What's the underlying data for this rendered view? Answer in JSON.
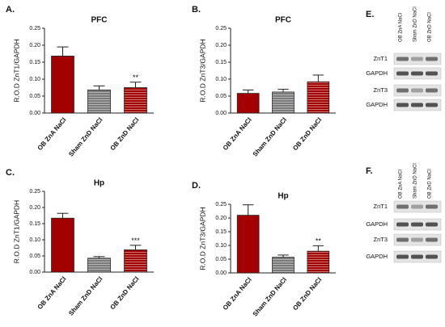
{
  "chart_data": [
    {
      "type": "bar",
      "letter": "A.",
      "title": "PFC",
      "y_label": "R.O.D ZnT1/GAPDH",
      "categories": [
        "OB ZnA NaCl",
        "Sham ZnD NaCl",
        "OB ZnD NaCl"
      ],
      "values": [
        0.168,
        0.068,
        0.075
      ],
      "errors": [
        0.027,
        0.012,
        0.016
      ],
      "colors": [
        "#a30000",
        "#7a7a7a",
        "#a30000"
      ],
      "hatch": [
        false,
        true,
        true
      ],
      "annotations": [
        null,
        null,
        "**"
      ],
      "ylim": [
        0,
        0.25
      ],
      "yticks": [
        {
          "value": 0,
          "label": "0.00"
        },
        {
          "value": 0.05,
          "label": "0.05"
        },
        {
          "value": 0.1,
          "label": "0.10"
        },
        {
          "value": 0.15,
          "label": "0.15"
        },
        {
          "value": 0.2,
          "label": "0.20"
        },
        {
          "value": 0.25,
          "label": "0.25"
        }
      ]
    },
    {
      "type": "bar",
      "letter": "B.",
      "title": "PFC",
      "y_label": "R.O.D ZnT3/GAPDH",
      "categories": [
        "OB ZnA NaCl",
        "Sham ZnD NaCl",
        "OB ZnD NaCl"
      ],
      "values": [
        0.058,
        0.062,
        0.092
      ],
      "errors": [
        0.01,
        0.008,
        0.02
      ],
      "colors": [
        "#a30000",
        "#7a7a7a",
        "#a30000"
      ],
      "hatch": [
        false,
        true,
        true
      ],
      "annotations": [
        null,
        null,
        null
      ],
      "ylim": [
        0,
        0.25
      ],
      "yticks": [
        {
          "value": 0,
          "label": "0.00"
        },
        {
          "value": 0.05,
          "label": "0.05"
        },
        {
          "value": 0.1,
          "label": "0.10"
        },
        {
          "value": 0.15,
          "label": "0.15"
        },
        {
          "value": 0.2,
          "label": "0.20"
        },
        {
          "value": 0.25,
          "label": "0.25"
        }
      ]
    },
    {
      "type": "bar",
      "letter": "C.",
      "title": "Hp",
      "y_label": "R.O.D ZnT1/GAPDH",
      "categories": [
        "OB ZnA NaCl",
        "Sham ZnD NaCl",
        "OB ZnD NaCl"
      ],
      "values": [
        0.167,
        0.043,
        0.069
      ],
      "errors": [
        0.015,
        0.005,
        0.014
      ],
      "colors": [
        "#a30000",
        "#7a7a7a",
        "#a30000"
      ],
      "hatch": [
        false,
        true,
        true
      ],
      "annotations": [
        null,
        null,
        "***"
      ],
      "ylim": [
        0,
        0.25
      ],
      "yticks": [
        {
          "value": 0,
          "label": "0.00"
        },
        {
          "value": 0.05,
          "label": "0.05"
        },
        {
          "value": 0.1,
          "label": "0.10"
        },
        {
          "value": 0.15,
          "label": "0.15"
        },
        {
          "value": 0.2,
          "label": "0.20"
        },
        {
          "value": 0.25,
          "label": "0.25"
        }
      ]
    },
    {
      "type": "bar",
      "letter": "D.",
      "title": "Hp",
      "y_label": "R.O.D ZnT3/GAPDH",
      "categories": [
        "OB ZnA NaCl",
        "Sham ZnD NaCl",
        "OB ZnD NaCl"
      ],
      "values": [
        0.21,
        0.057,
        0.079
      ],
      "errors": [
        0.038,
        0.008,
        0.02
      ],
      "colors": [
        "#a30000",
        "#7a7a7a",
        "#a30000"
      ],
      "hatch": [
        false,
        true,
        true
      ],
      "annotations": [
        null,
        null,
        "**"
      ],
      "ylim": [
        0,
        0.25
      ],
      "yticks": [
        {
          "value": 0,
          "label": "0.00"
        },
        {
          "value": 0.05,
          "label": "0.05"
        },
        {
          "value": 0.1,
          "label": "0.10"
        },
        {
          "value": 0.15,
          "label": "0.15"
        },
        {
          "value": 0.2,
          "label": "0.20"
        },
        {
          "value": 0.25,
          "label": "0.25"
        }
      ]
    }
  ],
  "blots": [
    {
      "letter": "E.",
      "lanes": [
        "OB ZnA NaCl",
        "Sham ZnD NaCl",
        "OB ZnD NaCl"
      ],
      "rows": [
        "ZnT1",
        "GAPDH",
        "ZnT3",
        "GAPDH"
      ]
    },
    {
      "letter": "F.",
      "lanes": [
        "OB ZnA NaCl",
        "Sham ZnD NaCl",
        "OB ZnD NaCl"
      ],
      "rows": [
        "ZnT1",
        "GAPDH",
        "ZnT3",
        "GAPDH"
      ]
    }
  ]
}
